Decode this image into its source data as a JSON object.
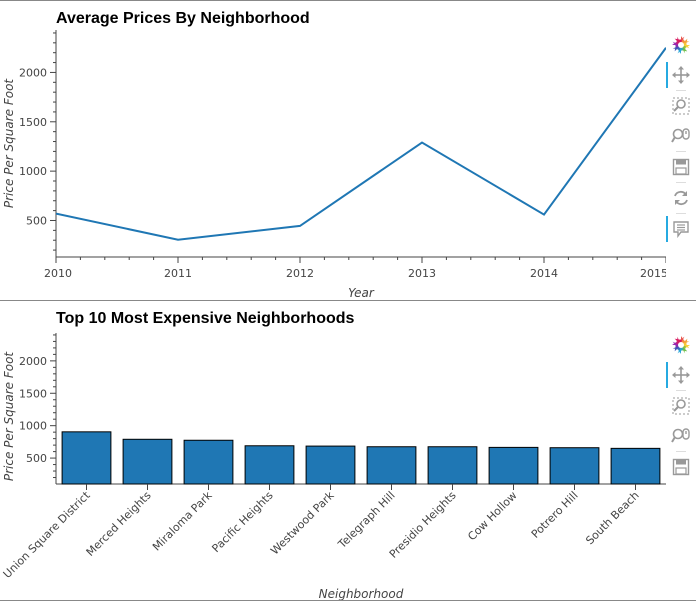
{
  "chart_data": [
    {
      "type": "line",
      "title": "Average Prices By Neighborhood",
      "xlabel": "Year",
      "ylabel": "Price Per Square Foot",
      "x": [
        2010,
        2011,
        2012,
        2013,
        2014,
        2015
      ],
      "series": [
        {
          "values": [
            570,
            305,
            445,
            1290,
            560,
            2250
          ]
        }
      ],
      "xlim": [
        2010,
        2015
      ],
      "ylim": [
        130,
        2430
      ],
      "yticks": [
        500,
        1000,
        1500,
        2000
      ],
      "grid": false,
      "color": "#1f77b4"
    },
    {
      "type": "bar",
      "title": "Top 10 Most Expensive Neighborhoods",
      "xlabel": "Neighborhood",
      "ylabel": "Price Per Square Foot",
      "categories": [
        "Union Square District",
        "Merced Heights",
        "Miraloma Park",
        "Pacific Heights",
        "Westwood Park",
        "Telegraph Hill",
        "Presidio Heights",
        "Cow Hollow",
        "Potrero Hill",
        "South Beach"
      ],
      "values": [
        905,
        790,
        775,
        690,
        685,
        675,
        675,
        665,
        660,
        650
      ],
      "ylim": [
        100,
        2430
      ],
      "yticks": [
        500,
        1000,
        1500,
        2000
      ],
      "grid": false,
      "color": "#1f77b4"
    }
  ],
  "toolbar_top": {
    "tools": [
      "bokeh-logo-icon",
      "pan-icon",
      "box-zoom-icon",
      "wheel-zoom-icon",
      "save-icon",
      "reset-icon",
      "hover-icon"
    ]
  },
  "toolbar_bottom": {
    "tools": [
      "bokeh-logo-icon",
      "pan-icon",
      "box-zoom-icon",
      "wheel-zoom-icon",
      "save-icon"
    ]
  }
}
